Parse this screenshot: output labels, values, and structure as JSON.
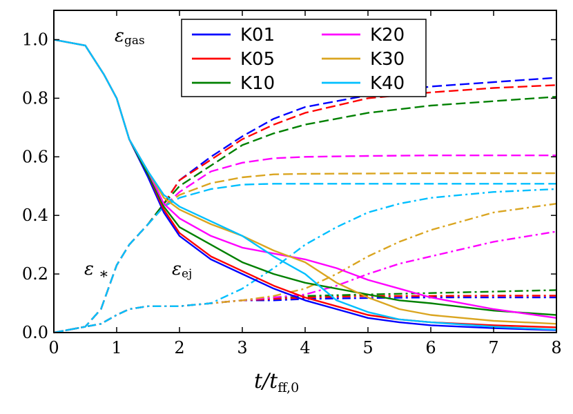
{
  "chart_data": {
    "type": "line",
    "title": "",
    "xlabel": "t/t_ff,0",
    "ylabel": "",
    "xlim": [
      0,
      8
    ],
    "ylim": [
      0,
      1.1
    ],
    "xticks": [
      "0",
      "1",
      "2",
      "3",
      "4",
      "5",
      "6",
      "7",
      "8"
    ],
    "yticks": [
      "0.0",
      "0.2",
      "0.4",
      "0.6",
      "0.8",
      "1.0"
    ],
    "grid": false,
    "legend_position": "top-center",
    "annotations": [
      {
        "id": "gas",
        "text": "ε_gas",
        "x": 1.05,
        "y": 1.0
      },
      {
        "id": "star",
        "text": "ε_*",
        "x": 0.55,
        "y": 0.2
      },
      {
        "id": "ej",
        "text": "ε_ej",
        "x": 2.0,
        "y": 0.2
      }
    ],
    "line_styles": {
      "gas": "solid",
      "star": "dashed",
      "ej": "dashdot"
    },
    "series": [
      {
        "name": "K01",
        "color": "#0000ff",
        "gas": [
          [
            0,
            1.0
          ],
          [
            0.5,
            0.98
          ],
          [
            0.8,
            0.88
          ],
          [
            1.0,
            0.8
          ],
          [
            1.2,
            0.66
          ],
          [
            1.5,
            0.53
          ],
          [
            1.75,
            0.41
          ],
          [
            2.0,
            0.33
          ],
          [
            2.5,
            0.25
          ],
          [
            3.0,
            0.2
          ],
          [
            3.5,
            0.15
          ],
          [
            4.0,
            0.11
          ],
          [
            4.5,
            0.08
          ],
          [
            5.0,
            0.05
          ],
          [
            5.5,
            0.035
          ],
          [
            6.0,
            0.025
          ],
          [
            7.0,
            0.015
          ],
          [
            8.0,
            0.008
          ]
        ],
        "star": [
          [
            0.0,
            0.0
          ],
          [
            0.5,
            0.02
          ],
          [
            0.75,
            0.08
          ],
          [
            1.0,
            0.23
          ],
          [
            1.2,
            0.3
          ],
          [
            1.5,
            0.37
          ],
          [
            1.75,
            0.44
          ],
          [
            2.0,
            0.52
          ],
          [
            2.5,
            0.6
          ],
          [
            3.0,
            0.67
          ],
          [
            3.5,
            0.73
          ],
          [
            4.0,
            0.77
          ],
          [
            5.0,
            0.81
          ],
          [
            6.0,
            0.84
          ],
          [
            7.0,
            0.855
          ],
          [
            8.0,
            0.87
          ]
        ],
        "ej": [
          [
            0.0,
            0.0
          ],
          [
            0.5,
            0.02
          ],
          [
            0.75,
            0.03
          ],
          [
            1.0,
            0.06
          ],
          [
            1.2,
            0.08
          ],
          [
            1.5,
            0.09
          ],
          [
            2.0,
            0.09
          ],
          [
            2.5,
            0.1
          ],
          [
            3.0,
            0.11
          ],
          [
            3.5,
            0.11
          ],
          [
            4.0,
            0.115
          ],
          [
            5.0,
            0.118
          ],
          [
            6.0,
            0.12
          ],
          [
            7.0,
            0.12
          ],
          [
            8.0,
            0.12
          ]
        ]
      },
      {
        "name": "K05",
        "color": "#ff0000",
        "gas": [
          [
            0,
            1.0
          ],
          [
            0.5,
            0.98
          ],
          [
            0.8,
            0.88
          ],
          [
            1.0,
            0.8
          ],
          [
            1.2,
            0.66
          ],
          [
            1.5,
            0.54
          ],
          [
            1.75,
            0.42
          ],
          [
            2.0,
            0.34
          ],
          [
            2.5,
            0.26
          ],
          [
            3.0,
            0.21
          ],
          [
            3.5,
            0.16
          ],
          [
            4.0,
            0.12
          ],
          [
            4.5,
            0.09
          ],
          [
            5.0,
            0.06
          ],
          [
            5.5,
            0.045
          ],
          [
            6.0,
            0.035
          ],
          [
            7.0,
            0.025
          ],
          [
            8.0,
            0.018
          ]
        ],
        "star": [
          [
            0.0,
            0.0
          ],
          [
            0.5,
            0.02
          ],
          [
            0.75,
            0.08
          ],
          [
            1.0,
            0.23
          ],
          [
            1.2,
            0.3
          ],
          [
            1.5,
            0.37
          ],
          [
            1.75,
            0.44
          ],
          [
            2.0,
            0.52
          ],
          [
            2.5,
            0.59
          ],
          [
            3.0,
            0.66
          ],
          [
            3.5,
            0.71
          ],
          [
            4.0,
            0.75
          ],
          [
            5.0,
            0.8
          ],
          [
            6.0,
            0.82
          ],
          [
            7.0,
            0.835
          ],
          [
            8.0,
            0.845
          ]
        ],
        "ej": [
          [
            0.0,
            0.0
          ],
          [
            0.5,
            0.02
          ],
          [
            0.75,
            0.03
          ],
          [
            1.0,
            0.06
          ],
          [
            1.2,
            0.08
          ],
          [
            1.5,
            0.09
          ],
          [
            2.0,
            0.09
          ],
          [
            2.5,
            0.1
          ],
          [
            3.0,
            0.11
          ],
          [
            3.5,
            0.115
          ],
          [
            4.0,
            0.12
          ],
          [
            5.0,
            0.125
          ],
          [
            6.0,
            0.125
          ],
          [
            7.0,
            0.126
          ],
          [
            8.0,
            0.126
          ]
        ]
      },
      {
        "name": "K10",
        "color": "#008000",
        "gas": [
          [
            0,
            1.0
          ],
          [
            0.5,
            0.98
          ],
          [
            0.8,
            0.88
          ],
          [
            1.0,
            0.8
          ],
          [
            1.2,
            0.66
          ],
          [
            1.5,
            0.54
          ],
          [
            1.75,
            0.43
          ],
          [
            2.0,
            0.36
          ],
          [
            2.5,
            0.3
          ],
          [
            3.0,
            0.24
          ],
          [
            3.5,
            0.2
          ],
          [
            4.0,
            0.17
          ],
          [
            4.5,
            0.15
          ],
          [
            5.0,
            0.13
          ],
          [
            5.5,
            0.11
          ],
          [
            6.0,
            0.1
          ],
          [
            7.0,
            0.075
          ],
          [
            8.0,
            0.06
          ]
        ],
        "star": [
          [
            0.0,
            0.0
          ],
          [
            0.5,
            0.02
          ],
          [
            0.75,
            0.08
          ],
          [
            1.0,
            0.23
          ],
          [
            1.2,
            0.3
          ],
          [
            1.5,
            0.37
          ],
          [
            1.75,
            0.44
          ],
          [
            2.0,
            0.5
          ],
          [
            2.5,
            0.57
          ],
          [
            3.0,
            0.64
          ],
          [
            3.5,
            0.68
          ],
          [
            4.0,
            0.71
          ],
          [
            5.0,
            0.75
          ],
          [
            6.0,
            0.775
          ],
          [
            7.0,
            0.79
          ],
          [
            8.0,
            0.805
          ]
        ],
        "ej": [
          [
            0.0,
            0.0
          ],
          [
            0.5,
            0.02
          ],
          [
            0.75,
            0.03
          ],
          [
            1.0,
            0.06
          ],
          [
            1.2,
            0.08
          ],
          [
            1.5,
            0.09
          ],
          [
            2.0,
            0.09
          ],
          [
            2.5,
            0.1
          ],
          [
            3.0,
            0.11
          ],
          [
            3.5,
            0.12
          ],
          [
            4.0,
            0.125
          ],
          [
            5.0,
            0.13
          ],
          [
            6.0,
            0.135
          ],
          [
            7.0,
            0.14
          ],
          [
            8.0,
            0.145
          ]
        ]
      },
      {
        "name": "K20",
        "color": "#ff00ff",
        "gas": [
          [
            0,
            1.0
          ],
          [
            0.5,
            0.98
          ],
          [
            0.8,
            0.88
          ],
          [
            1.0,
            0.8
          ],
          [
            1.2,
            0.66
          ],
          [
            1.5,
            0.55
          ],
          [
            1.75,
            0.44
          ],
          [
            2.0,
            0.39
          ],
          [
            2.5,
            0.33
          ],
          [
            3.0,
            0.29
          ],
          [
            3.5,
            0.27
          ],
          [
            4.0,
            0.25
          ],
          [
            4.5,
            0.22
          ],
          [
            5.0,
            0.18
          ],
          [
            5.5,
            0.15
          ],
          [
            6.0,
            0.12
          ],
          [
            7.0,
            0.08
          ],
          [
            8.0,
            0.05
          ]
        ],
        "star": [
          [
            0.0,
            0.0
          ],
          [
            0.5,
            0.02
          ],
          [
            0.75,
            0.08
          ],
          [
            1.0,
            0.23
          ],
          [
            1.2,
            0.3
          ],
          [
            1.5,
            0.37
          ],
          [
            1.75,
            0.43
          ],
          [
            2.0,
            0.48
          ],
          [
            2.5,
            0.55
          ],
          [
            3.0,
            0.58
          ],
          [
            3.5,
            0.595
          ],
          [
            4.0,
            0.6
          ],
          [
            5.0,
            0.603
          ],
          [
            6.0,
            0.605
          ],
          [
            7.0,
            0.605
          ],
          [
            8.0,
            0.605
          ]
        ],
        "ej": [
          [
            0.0,
            0.0
          ],
          [
            0.5,
            0.02
          ],
          [
            0.75,
            0.03
          ],
          [
            1.0,
            0.06
          ],
          [
            1.2,
            0.08
          ],
          [
            1.5,
            0.09
          ],
          [
            2.0,
            0.09
          ],
          [
            2.5,
            0.1
          ],
          [
            3.0,
            0.11
          ],
          [
            3.5,
            0.12
          ],
          [
            4.0,
            0.13
          ],
          [
            4.5,
            0.16
          ],
          [
            5.0,
            0.2
          ],
          [
            5.5,
            0.235
          ],
          [
            6.0,
            0.26
          ],
          [
            7.0,
            0.31
          ],
          [
            8.0,
            0.345
          ]
        ]
      },
      {
        "name": "K30",
        "color": "#daa520",
        "gas": [
          [
            0,
            1.0
          ],
          [
            0.5,
            0.98
          ],
          [
            0.8,
            0.88
          ],
          [
            1.0,
            0.8
          ],
          [
            1.2,
            0.66
          ],
          [
            1.5,
            0.55
          ],
          [
            1.75,
            0.46
          ],
          [
            2.0,
            0.42
          ],
          [
            2.5,
            0.37
          ],
          [
            3.0,
            0.33
          ],
          [
            3.5,
            0.28
          ],
          [
            4.0,
            0.24
          ],
          [
            4.5,
            0.17
          ],
          [
            5.0,
            0.12
          ],
          [
            5.5,
            0.08
          ],
          [
            6.0,
            0.06
          ],
          [
            7.0,
            0.04
          ],
          [
            8.0,
            0.03
          ]
        ],
        "star": [
          [
            0.0,
            0.0
          ],
          [
            0.5,
            0.02
          ],
          [
            0.75,
            0.08
          ],
          [
            1.0,
            0.23
          ],
          [
            1.2,
            0.3
          ],
          [
            1.5,
            0.37
          ],
          [
            1.75,
            0.43
          ],
          [
            2.0,
            0.47
          ],
          [
            2.5,
            0.51
          ],
          [
            3.0,
            0.53
          ],
          [
            3.5,
            0.54
          ],
          [
            4.0,
            0.542
          ],
          [
            5.0,
            0.543
          ],
          [
            6.0,
            0.544
          ],
          [
            7.0,
            0.544
          ],
          [
            8.0,
            0.544
          ]
        ],
        "ej": [
          [
            0.0,
            0.0
          ],
          [
            0.5,
            0.02
          ],
          [
            0.75,
            0.03
          ],
          [
            1.0,
            0.06
          ],
          [
            1.2,
            0.08
          ],
          [
            1.5,
            0.09
          ],
          [
            2.0,
            0.09
          ],
          [
            2.5,
            0.1
          ],
          [
            3.0,
            0.11
          ],
          [
            3.5,
            0.125
          ],
          [
            4.0,
            0.15
          ],
          [
            4.5,
            0.2
          ],
          [
            5.0,
            0.26
          ],
          [
            5.5,
            0.31
          ],
          [
            6.0,
            0.35
          ],
          [
            7.0,
            0.41
          ],
          [
            8.0,
            0.44
          ]
        ]
      },
      {
        "name": "K40",
        "color": "#00bfff",
        "gas": [
          [
            0,
            1.0
          ],
          [
            0.5,
            0.98
          ],
          [
            0.8,
            0.88
          ],
          [
            1.0,
            0.8
          ],
          [
            1.2,
            0.66
          ],
          [
            1.5,
            0.55
          ],
          [
            1.75,
            0.47
          ],
          [
            2.0,
            0.43
          ],
          [
            2.5,
            0.38
          ],
          [
            3.0,
            0.33
          ],
          [
            3.5,
            0.26
          ],
          [
            4.0,
            0.2
          ],
          [
            4.5,
            0.11
          ],
          [
            5.0,
            0.07
          ],
          [
            5.5,
            0.045
          ],
          [
            6.0,
            0.035
          ],
          [
            7.0,
            0.02
          ],
          [
            8.0,
            0.01
          ]
        ],
        "star": [
          [
            0.0,
            0.0
          ],
          [
            0.5,
            0.02
          ],
          [
            0.75,
            0.08
          ],
          [
            1.0,
            0.23
          ],
          [
            1.2,
            0.3
          ],
          [
            1.5,
            0.37
          ],
          [
            1.75,
            0.43
          ],
          [
            2.0,
            0.46
          ],
          [
            2.5,
            0.49
          ],
          [
            3.0,
            0.505
          ],
          [
            3.5,
            0.508
          ],
          [
            4.0,
            0.508
          ],
          [
            5.0,
            0.508
          ],
          [
            6.0,
            0.508
          ],
          [
            7.0,
            0.508
          ],
          [
            8.0,
            0.508
          ]
        ],
        "ej": [
          [
            0.0,
            0.0
          ],
          [
            0.5,
            0.02
          ],
          [
            0.75,
            0.03
          ],
          [
            1.0,
            0.06
          ],
          [
            1.2,
            0.08
          ],
          [
            1.5,
            0.09
          ],
          [
            2.0,
            0.09
          ],
          [
            2.5,
            0.1
          ],
          [
            3.0,
            0.15
          ],
          [
            3.5,
            0.22
          ],
          [
            4.0,
            0.3
          ],
          [
            4.5,
            0.36
          ],
          [
            5.0,
            0.41
          ],
          [
            5.5,
            0.44
          ],
          [
            6.0,
            0.46
          ],
          [
            7.0,
            0.48
          ],
          [
            8.0,
            0.49
          ]
        ]
      }
    ]
  }
}
